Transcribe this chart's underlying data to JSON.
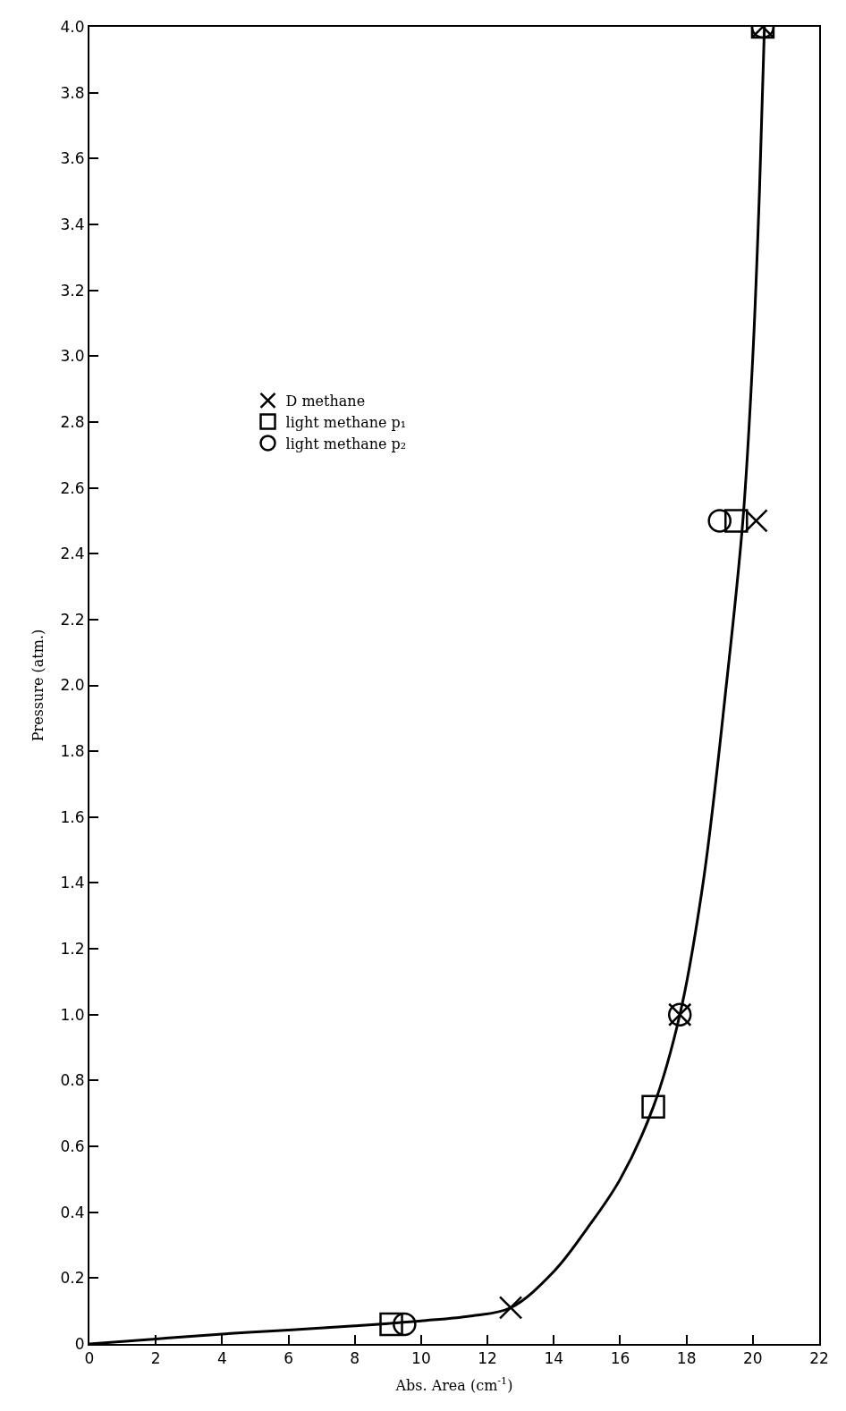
{
  "chart_data": {
    "type": "scatter",
    "xlabel": "Abs. Area (cm$^{-1}$)",
    "ylabel": "Pressure (atm.)",
    "xlim": [
      0,
      22
    ],
    "xticks": [
      0,
      2,
      4,
      6,
      8,
      10,
      12,
      14,
      16,
      18,
      20,
      22
    ],
    "ylim": [
      0,
      4.0
    ],
    "yticks": [
      {
        "value": 0,
        "label": "0"
      },
      {
        "value": 0.2,
        "label": "0.2"
      },
      {
        "value": 0.4,
        "label": "0.4"
      },
      {
        "value": 0.6,
        "label": "0.6"
      },
      {
        "value": 0.8,
        "label": "0.8"
      },
      {
        "value": 1.0,
        "label": "1.0"
      },
      {
        "value": 1.2,
        "label": "1.2"
      },
      {
        "value": 1.4,
        "label": "1.4"
      },
      {
        "value": 1.6,
        "label": "1.6"
      },
      {
        "value": 1.8,
        "label": "1.8"
      },
      {
        "value": 2.0,
        "label": "2.0"
      },
      {
        "value": 2.2,
        "label": "2.2"
      },
      {
        "value": 2.4,
        "label": "2.4"
      },
      {
        "value": 2.6,
        "label": "2.6"
      },
      {
        "value": 2.8,
        "label": "2.8"
      },
      {
        "value": 3.0,
        "label": "3.0"
      },
      {
        "value": 3.2,
        "label": "3.2"
      },
      {
        "value": 3.4,
        "label": "3.4"
      },
      {
        "value": 3.6,
        "label": "3.6"
      },
      {
        "value": 3.8,
        "label": "3.8"
      },
      {
        "value": 4.0,
        "label": "4.0"
      }
    ],
    "legend": "left",
    "series": [
      {
        "type": "line",
        "color": "#000000",
        "marker": "none",
        "line_style": "solid",
        "x": [
          0,
          2,
          4,
          6,
          8,
          10,
          11.5,
          12.7,
          14,
          15,
          16,
          17,
          17.8,
          18.5,
          19.2,
          19.7,
          20.0,
          20.2,
          20.35
        ],
        "values": [
          0,
          0.015,
          0.03,
          0.042,
          0.055,
          0.07,
          0.085,
          0.11,
          0.22,
          0.35,
          0.5,
          0.72,
          1.0,
          1.4,
          2.0,
          2.5,
          3.0,
          3.5,
          4.0
        ]
      },
      {
        "name": "D methane",
        "color": "#000000",
        "marker": "cross",
        "x": [
          12.7,
          17.8,
          20.1,
          20.3
        ],
        "values": [
          0.11,
          1.0,
          2.5,
          4.0
        ]
      },
      {
        "name": "light methane p₁",
        "color": "#000000",
        "marker": "square",
        "x": [
          9.1,
          17.0,
          19.5,
          20.3
        ],
        "values": [
          0.06,
          0.72,
          2.5,
          4.0
        ]
      },
      {
        "name": "light methane p₂",
        "color": "#000000",
        "marker": "circle",
        "x": [
          9.5,
          17.8,
          19.0,
          20.3
        ],
        "values": [
          0.06,
          1.0,
          2.5,
          4.0
        ]
      }
    ]
  }
}
